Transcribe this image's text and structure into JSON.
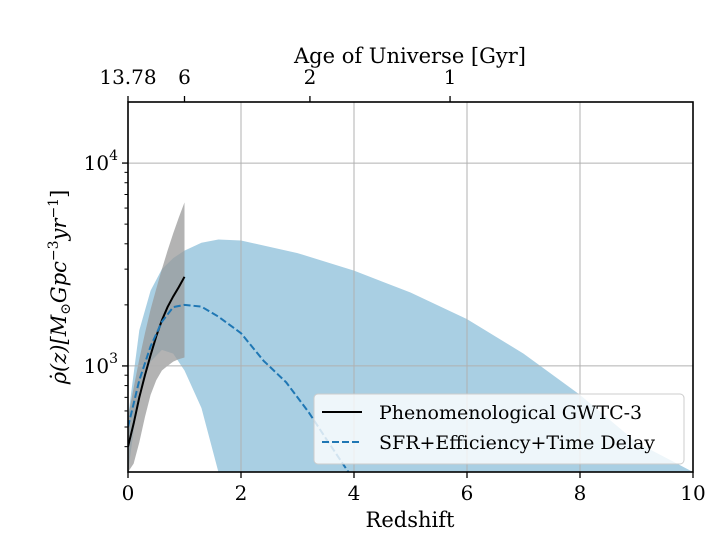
{
  "chart_data": {
    "type": "line",
    "xlabel": "Redshift",
    "ylabel_parts": [
      "ρ̇(z)[M",
      "⊙",
      "Gpc",
      "−3",
      "yr",
      "−1",
      "]"
    ],
    "top_axis_label": "Age of Universe [Gyr]",
    "xlim": [
      0,
      10
    ],
    "ylim": [
      300,
      20000
    ],
    "yscale": "log",
    "grid": true,
    "legend_position": "lower-right",
    "x_ticks": [
      0,
      2,
      4,
      6,
      8,
      10
    ],
    "x_tick_labels": [
      "0",
      "2",
      "4",
      "6",
      "8",
      "10"
    ],
    "y_ticks": [
      1000,
      10000
    ],
    "y_tick_labels": [
      {
        "base": "10",
        "exp": "3"
      },
      {
        "base": "10",
        "exp": "4"
      }
    ],
    "top_ticks": [
      0,
      1,
      3.22,
      5.7
    ],
    "top_tick_labels": [
      "13.78",
      "6",
      "2",
      "1"
    ],
    "series": [
      {
        "name": "Phenomenological GWTC-3",
        "style": "solid",
        "color": "#000000",
        "x": [
          0,
          0.1,
          0.2,
          0.3,
          0.4,
          0.5,
          0.6,
          0.7,
          0.8,
          0.9,
          1.0
        ],
        "y": [
          400,
          520,
          700,
          900,
          1130,
          1400,
          1680,
          1950,
          2200,
          2450,
          2750
        ]
      },
      {
        "name": "SFR+Efficiency+Time Delay",
        "style": "dashed",
        "color": "#1f77b4",
        "x": [
          0,
          0.2,
          0.4,
          0.6,
          0.8,
          1.0,
          1.3,
          1.6,
          2.0,
          2.4,
          2.8,
          3.2,
          3.5,
          3.9
        ],
        "y": [
          500,
          850,
          1250,
          1650,
          1950,
          2000,
          1960,
          1750,
          1450,
          1060,
          830,
          590,
          440,
          300
        ]
      }
    ],
    "bands": [
      {
        "color": "#a9cfe3",
        "x": [
          0,
          0.2,
          0.4,
          0.6,
          0.8,
          1.0,
          1.3,
          1.6,
          2.0,
          3.0,
          4.0,
          5.0,
          6.0,
          7.0,
          8.0,
          9.0,
          10.0
        ],
        "upper": [
          560,
          1500,
          2350,
          3000,
          3400,
          3700,
          4050,
          4200,
          4150,
          3600,
          2950,
          2300,
          1700,
          1150,
          720,
          420,
          300
        ],
        "lower": [
          300,
          750,
          1050,
          1200,
          1150,
          950,
          620,
          300,
          300,
          300,
          300,
          300,
          300,
          300,
          300,
          300,
          300
        ]
      },
      {
        "color": "#999999",
        "opacity": 0.75,
        "x": [
          0,
          0.1,
          0.2,
          0.3,
          0.4,
          0.5,
          0.6,
          0.7,
          0.8,
          0.9,
          1.0
        ],
        "upper": [
          560,
          780,
          1080,
          1450,
          1900,
          2400,
          3000,
          3700,
          4500,
          5400,
          6400
        ],
        "lower": [
          300,
          330,
          420,
          560,
          720,
          850,
          950,
          1000,
          1050,
          1080,
          1100
        ]
      }
    ]
  }
}
